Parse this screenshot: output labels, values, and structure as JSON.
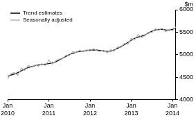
{
  "chart_data": {
    "type": "line",
    "ylabel": "$m",
    "categories": [
      "Jan 2010",
      null,
      null,
      null,
      null,
      null,
      null,
      null,
      null,
      null,
      null,
      null,
      "Jan 2011",
      null,
      null,
      null,
      null,
      null,
      null,
      null,
      null,
      null,
      null,
      null,
      "Jan 2012",
      null,
      null,
      null,
      null,
      null,
      null,
      null,
      null,
      null,
      null,
      null,
      "Jan 2013",
      null,
      null,
      null,
      null,
      null,
      null,
      null,
      null,
      null,
      null,
      null,
      "Jan 2014",
      null
    ],
    "series": [
      {
        "name": "Trend estimates",
        "color": "#000000",
        "line_style": "solid",
        "values": [
          4520,
          4545,
          4570,
          4600,
          4640,
          4680,
          4710,
          4735,
          4755,
          4770,
          4780,
          4790,
          4800,
          4815,
          4840,
          4880,
          4920,
          4960,
          5000,
          5030,
          5055,
          5070,
          5080,
          5090,
          5100,
          5105,
          5100,
          5090,
          5080,
          5075,
          5080,
          5100,
          5140,
          5180,
          5220,
          5270,
          5320,
          5360,
          5390,
          5410,
          5440,
          5480,
          5520,
          5550,
          5560,
          5560,
          5550,
          5545,
          5560,
          5590
        ]
      },
      {
        "name": "Seasonally adjusted",
        "color": "#b0b0b0",
        "line_style": "solid",
        "values": [
          4460,
          4580,
          4600,
          4540,
          4700,
          4650,
          4760,
          4720,
          4770,
          4740,
          4800,
          4760,
          4880,
          4790,
          4860,
          4900,
          4910,
          4990,
          4980,
          5070,
          5040,
          5100,
          5060,
          5110,
          5080,
          5130,
          5090,
          5070,
          5100,
          5040,
          5110,
          5080,
          5170,
          5160,
          5250,
          5230,
          5360,
          5330,
          5450,
          5380,
          5420,
          5500,
          5490,
          5580,
          5540,
          5590,
          5510,
          5560,
          5530,
          5620
        ]
      }
    ],
    "ylim": [
      4000,
      6000
    ],
    "yticks": [
      4000,
      4500,
      5000,
      5500,
      6000
    ],
    "grid": false,
    "legend": "top-left"
  }
}
